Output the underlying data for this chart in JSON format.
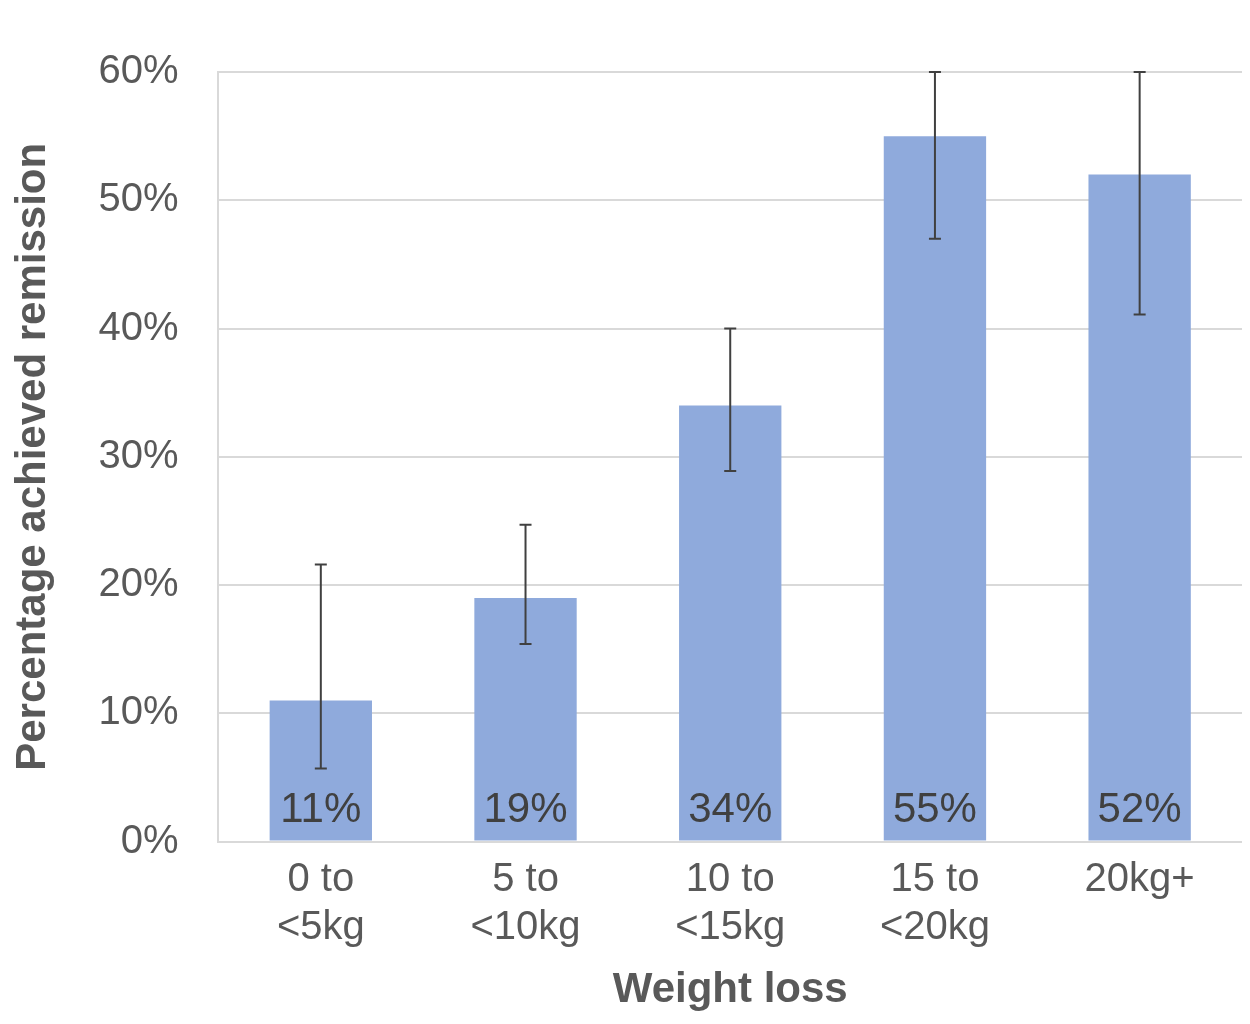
{
  "chart_data": {
    "type": "bar",
    "xlabel": "Weight loss",
    "ylabel": "Percentage achieved remission",
    "categories": [
      "0 to\n<5kg",
      "5 to\n<10kg",
      "10 to\n<15kg",
      "15 to\n<20kg",
      "20kg+"
    ],
    "values": [
      11,
      19,
      34,
      55,
      52
    ],
    "value_labels": [
      "11%",
      "19%",
      "34%",
      "55%",
      "52%"
    ],
    "errors": [
      [
        5.7,
        21.6
      ],
      [
        15.4,
        24.7
      ],
      [
        28.9,
        40
      ],
      [
        47,
        60
      ],
      [
        41.1,
        60
      ]
    ],
    "color": "#8faadc",
    "ylim": [
      0,
      60
    ],
    "yticks": [
      {
        "value": 0,
        "label": "0%"
      },
      {
        "value": 10,
        "label": "10%"
      },
      {
        "value": 20,
        "label": "20%"
      },
      {
        "value": 30,
        "label": "30%"
      },
      {
        "value": 40,
        "label": "40%"
      },
      {
        "value": 50,
        "label": "50%"
      },
      {
        "value": 60,
        "label": "60%"
      }
    ],
    "grid": "y"
  }
}
